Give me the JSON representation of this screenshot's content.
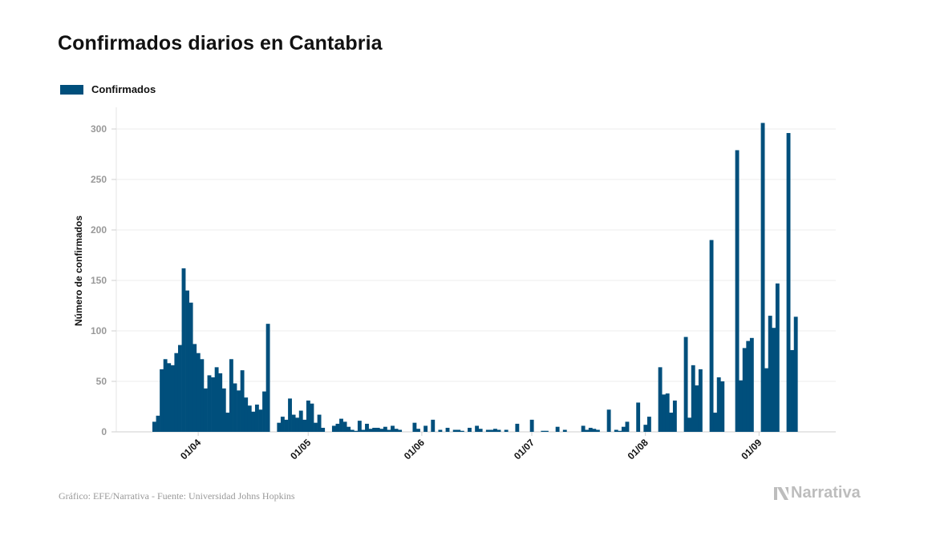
{
  "title": "Confirmados diarios en Cantabria",
  "legend": {
    "label": "Confirmados",
    "color": "#004f7c"
  },
  "footer": {
    "source": "Gráfico: EFE/Narrativa - Fuente: Universidad Johns Hopkins",
    "brand": "Narrativa"
  },
  "chart_data": {
    "type": "bar",
    "title": "Confirmados diarios en Cantabria",
    "ylabel": "Número de confirmados",
    "xlabel": "",
    "ylim": [
      0,
      320
    ],
    "grid": true,
    "legend_position": "top-left",
    "series": [
      {
        "name": "Confirmados",
        "color": "#004f7c"
      }
    ],
    "x_start": "2020-03-13",
    "x_end": "2020-09-09",
    "y_ticks": [
      0,
      50,
      100,
      150,
      200,
      250,
      300
    ],
    "x_ticks": [
      {
        "date": "2020-04-01",
        "label": "01/04"
      },
      {
        "date": "2020-05-01",
        "label": "01/05"
      },
      {
        "date": "2020-06-01",
        "label": "01/06"
      },
      {
        "date": "2020-07-01",
        "label": "01/07"
      },
      {
        "date": "2020-08-01",
        "label": "01/08"
      },
      {
        "date": "2020-09-01",
        "label": "01/09"
      }
    ],
    "values": [
      [
        "2020-03-20",
        10
      ],
      [
        "2020-03-21",
        16
      ],
      [
        "2020-03-22",
        62
      ],
      [
        "2020-03-23",
        72
      ],
      [
        "2020-03-24",
        68
      ],
      [
        "2020-03-25",
        66
      ],
      [
        "2020-03-26",
        78
      ],
      [
        "2020-03-27",
        86
      ],
      [
        "2020-03-28",
        162
      ],
      [
        "2020-03-29",
        140
      ],
      [
        "2020-03-30",
        128
      ],
      [
        "2020-03-31",
        87
      ],
      [
        "2020-04-01",
        78
      ],
      [
        "2020-04-02",
        72
      ],
      [
        "2020-04-03",
        43
      ],
      [
        "2020-04-04",
        56
      ],
      [
        "2020-04-05",
        54
      ],
      [
        "2020-04-06",
        64
      ],
      [
        "2020-04-07",
        58
      ],
      [
        "2020-04-08",
        43
      ],
      [
        "2020-04-09",
        19
      ],
      [
        "2020-04-10",
        72
      ],
      [
        "2020-04-11",
        48
      ],
      [
        "2020-04-12",
        41
      ],
      [
        "2020-04-13",
        61
      ],
      [
        "2020-04-14",
        34
      ],
      [
        "2020-04-15",
        26
      ],
      [
        "2020-04-16",
        20
      ],
      [
        "2020-04-17",
        27
      ],
      [
        "2020-04-18",
        22
      ],
      [
        "2020-04-19",
        40
      ],
      [
        "2020-04-20",
        107
      ],
      [
        "2020-04-23",
        9
      ],
      [
        "2020-04-24",
        15
      ],
      [
        "2020-04-25",
        12
      ],
      [
        "2020-04-26",
        33
      ],
      [
        "2020-04-27",
        17
      ],
      [
        "2020-04-28",
        14
      ],
      [
        "2020-04-29",
        21
      ],
      [
        "2020-04-30",
        12
      ],
      [
        "2020-05-01",
        31
      ],
      [
        "2020-05-02",
        28
      ],
      [
        "2020-05-03",
        9
      ],
      [
        "2020-05-04",
        17
      ],
      [
        "2020-05-05",
        4
      ],
      [
        "2020-05-08",
        6
      ],
      [
        "2020-05-09",
        8
      ],
      [
        "2020-05-10",
        13
      ],
      [
        "2020-05-11",
        10
      ],
      [
        "2020-05-12",
        5
      ],
      [
        "2020-05-13",
        2
      ],
      [
        "2020-05-14",
        1
      ],
      [
        "2020-05-15",
        11
      ],
      [
        "2020-05-16",
        2
      ],
      [
        "2020-05-17",
        8
      ],
      [
        "2020-05-18",
        3
      ],
      [
        "2020-05-19",
        4
      ],
      [
        "2020-05-20",
        4
      ],
      [
        "2020-05-21",
        3
      ],
      [
        "2020-05-22",
        5
      ],
      [
        "2020-05-23",
        2
      ],
      [
        "2020-05-24",
        6
      ],
      [
        "2020-05-25",
        3
      ],
      [
        "2020-05-26",
        2
      ],
      [
        "2020-05-30",
        9
      ],
      [
        "2020-05-31",
        3
      ],
      [
        "2020-06-02",
        6
      ],
      [
        "2020-06-04",
        12
      ],
      [
        "2020-06-06",
        2
      ],
      [
        "2020-06-08",
        4
      ],
      [
        "2020-06-10",
        2
      ],
      [
        "2020-06-11",
        2
      ],
      [
        "2020-06-12",
        1
      ],
      [
        "2020-06-14",
        4
      ],
      [
        "2020-06-16",
        6
      ],
      [
        "2020-06-17",
        3
      ],
      [
        "2020-06-19",
        2
      ],
      [
        "2020-06-20",
        2
      ],
      [
        "2020-06-21",
        3
      ],
      [
        "2020-06-22",
        2
      ],
      [
        "2020-06-24",
        2
      ],
      [
        "2020-06-27",
        8
      ],
      [
        "2020-07-01",
        12
      ],
      [
        "2020-07-04",
        1
      ],
      [
        "2020-07-05",
        1
      ],
      [
        "2020-07-08",
        5
      ],
      [
        "2020-07-10",
        2
      ],
      [
        "2020-07-15",
        6
      ],
      [
        "2020-07-16",
        2
      ],
      [
        "2020-07-17",
        4
      ],
      [
        "2020-07-18",
        3
      ],
      [
        "2020-07-19",
        2
      ],
      [
        "2020-07-22",
        22
      ],
      [
        "2020-07-24",
        2
      ],
      [
        "2020-07-25",
        1
      ],
      [
        "2020-07-26",
        5
      ],
      [
        "2020-07-27",
        10
      ],
      [
        "2020-07-30",
        29
      ],
      [
        "2020-08-01",
        7
      ],
      [
        "2020-08-02",
        15
      ],
      [
        "2020-08-05",
        64
      ],
      [
        "2020-08-06",
        37
      ],
      [
        "2020-08-07",
        38
      ],
      [
        "2020-08-08",
        19
      ],
      [
        "2020-08-09",
        31
      ],
      [
        "2020-08-12",
        94
      ],
      [
        "2020-08-13",
        14
      ],
      [
        "2020-08-14",
        66
      ],
      [
        "2020-08-15",
        46
      ],
      [
        "2020-08-16",
        62
      ],
      [
        "2020-08-19",
        190
      ],
      [
        "2020-08-20",
        19
      ],
      [
        "2020-08-21",
        54
      ],
      [
        "2020-08-22",
        50
      ],
      [
        "2020-08-26",
        279
      ],
      [
        "2020-08-27",
        51
      ],
      [
        "2020-08-28",
        83
      ],
      [
        "2020-08-29",
        90
      ],
      [
        "2020-08-30",
        93
      ],
      [
        "2020-09-02",
        306
      ],
      [
        "2020-09-03",
        63
      ],
      [
        "2020-09-04",
        115
      ],
      [
        "2020-09-05",
        103
      ],
      [
        "2020-09-06",
        147
      ],
      [
        "2020-09-09",
        296
      ],
      [
        "2020-09-10",
        81
      ],
      [
        "2020-09-11",
        114
      ]
    ]
  }
}
